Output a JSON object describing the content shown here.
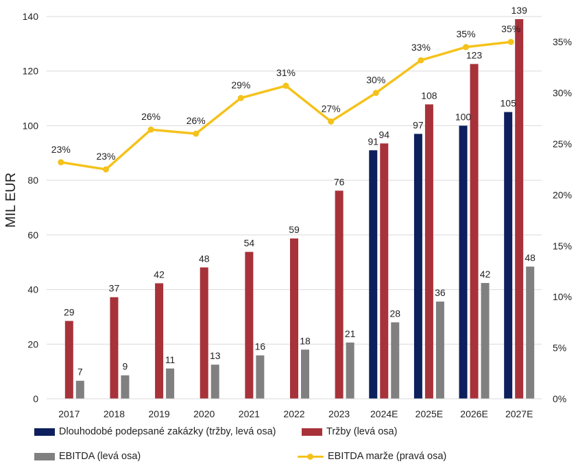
{
  "chart_data": {
    "type": "bar",
    "categories": [
      "2017",
      "2018",
      "2019",
      "2020",
      "2021",
      "2022",
      "2023",
      "2024E",
      "2025E",
      "2026E",
      "2027E"
    ],
    "ylabel": "MIL EUR",
    "ylim": [
      0,
      140
    ],
    "y_ticks": [
      "0",
      "20",
      "40",
      "60",
      "80",
      "100",
      "120",
      "140"
    ],
    "y2lim": [
      0,
      0.375
    ],
    "y2_ticks": [
      "0%",
      "5%",
      "10%",
      "15%",
      "20%",
      "25%",
      "30%",
      "35%"
    ],
    "grid": true,
    "legend_position": "bottom",
    "series": [
      {
        "name": "Dlouhodobé podepsané zakázky (tržby, levá osa)",
        "type": "bar",
        "axis": "left",
        "color": "#0d1f5c",
        "values": [
          null,
          null,
          null,
          null,
          null,
          null,
          null,
          91,
          97,
          100,
          105
        ],
        "labels": [
          "",
          "",
          "",
          "",
          "",
          "",
          "",
          "91",
          "97",
          "100",
          "105"
        ]
      },
      {
        "name": "Tržby (levá osa)",
        "type": "bar",
        "axis": "left",
        "color": "#a8323a",
        "values": [
          28.5,
          37.2,
          42.3,
          48.1,
          53.8,
          58.7,
          76.2,
          93.5,
          107.8,
          122.6,
          139
        ],
        "labels": [
          "29",
          "37",
          "42",
          "48",
          "54",
          "59",
          "76",
          "94",
          "108",
          "123",
          "139"
        ]
      },
      {
        "name": "EBITDA (levá osa)",
        "type": "bar",
        "axis": "left",
        "color": "#808080",
        "values": [
          6.6,
          8.6,
          11.1,
          12.5,
          15.9,
          18.0,
          20.6,
          28.0,
          35.6,
          42.4,
          48.4
        ],
        "labels": [
          "7",
          "9",
          "11",
          "13",
          "16",
          "18",
          "21",
          "28",
          "36",
          "42",
          "48"
        ]
      },
      {
        "name": "EBITDA marže (pravá osa)",
        "type": "line",
        "axis": "right",
        "color": "#f5c21b",
        "values": [
          0.232,
          0.225,
          0.264,
          0.26,
          0.295,
          0.307,
          0.272,
          0.3,
          0.332,
          0.345,
          0.35
        ],
        "labels": [
          "23%",
          "23%",
          "26%",
          "26%",
          "29%",
          "31%",
          "27%",
          "30%",
          "33%",
          "35%",
          "35%"
        ]
      }
    ]
  }
}
